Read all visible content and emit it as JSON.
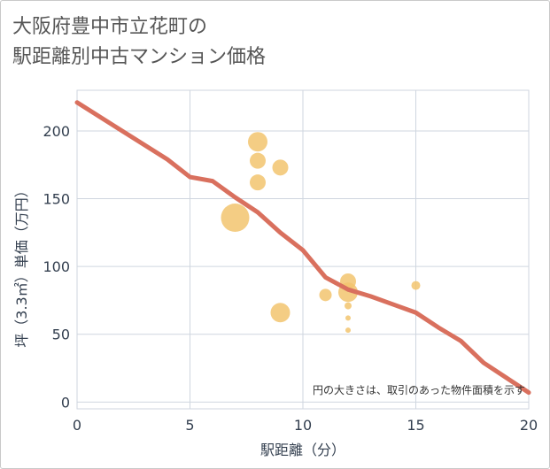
{
  "title_line1": "大阪府豊中市立花町の",
  "title_line2": "駅距離別中古マンション価格",
  "chart_data": {
    "type": "scatter",
    "title": "大阪府豊中市立花町の駅距離別中古マンション価格",
    "xlabel": "駅距離（分）",
    "ylabel": "坪（3.3㎡）単価（万円）",
    "xlim": [
      0,
      20
    ],
    "ylim": [
      -5,
      230
    ],
    "xticks": [
      0,
      5,
      10,
      15,
      20
    ],
    "yticks": [
      0,
      50,
      100,
      150,
      200
    ],
    "grid": true,
    "annotation": "円の大きさは、取引のあった物件面積を示す",
    "bubble_color": "#f2c46e",
    "line_color": "#d9705e",
    "points": [
      {
        "x": 7,
        "y": 136,
        "size": 16
      },
      {
        "x": 8,
        "y": 192,
        "size": 11
      },
      {
        "x": 8,
        "y": 178,
        "size": 9
      },
      {
        "x": 8,
        "y": 162,
        "size": 9
      },
      {
        "x": 9,
        "y": 173,
        "size": 9
      },
      {
        "x": 9,
        "y": 66,
        "size": 11
      },
      {
        "x": 11,
        "y": 79,
        "size": 7
      },
      {
        "x": 12,
        "y": 89,
        "size": 9
      },
      {
        "x": 12,
        "y": 81,
        "size": 11
      },
      {
        "x": 12,
        "y": 71,
        "size": 4
      },
      {
        "x": 12,
        "y": 62,
        "size": 3
      },
      {
        "x": 12,
        "y": 53,
        "size": 3
      },
      {
        "x": 15,
        "y": 86,
        "size": 5
      }
    ],
    "trend": {
      "name": "trend",
      "x": [
        0,
        2,
        4,
        5,
        6,
        7,
        8,
        9,
        10,
        11,
        12,
        13,
        14,
        15,
        16,
        17,
        18,
        19,
        20
      ],
      "y": [
        221,
        200,
        179,
        166,
        163,
        151,
        140,
        125,
        112,
        92,
        83,
        78,
        72,
        66,
        55,
        45,
        29,
        18,
        7
      ]
    }
  }
}
